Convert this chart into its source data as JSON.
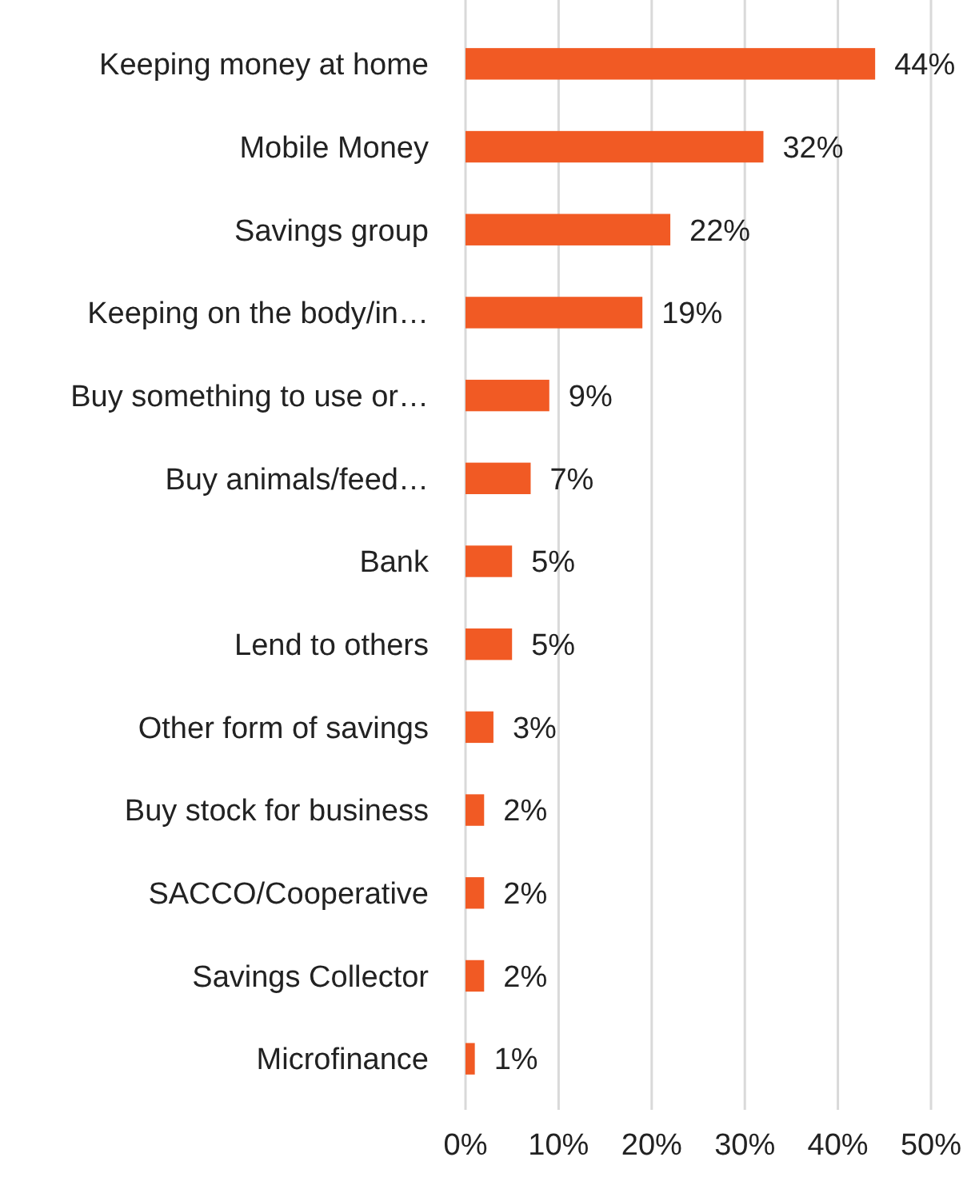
{
  "chart_data": {
    "type": "bar",
    "orientation": "horizontal",
    "categories": [
      "Keeping money at home",
      "Mobile Money",
      "Savings group",
      "Keeping on the body/in…",
      "Buy something to use or…",
      "Buy animals/feed…",
      "Bank",
      "Lend to others",
      "Other form of savings",
      "Buy stock for business",
      "SACCO/Cooperative",
      "Savings Collector",
      "Microfinance"
    ],
    "values": [
      44,
      32,
      22,
      19,
      9,
      7,
      5,
      5,
      3,
      2,
      2,
      2,
      1
    ],
    "value_labels": [
      "44%",
      "32%",
      "22%",
      "19%",
      "9%",
      "7%",
      "5%",
      "5%",
      "3%",
      "2%",
      "2%",
      "2%",
      "1%"
    ],
    "color": "#f15a24",
    "xlim": [
      0,
      50
    ],
    "xticks": [
      {
        "value": 0,
        "label": "0%"
      },
      {
        "value": 10,
        "label": "10%"
      },
      {
        "value": 20,
        "label": "20%"
      },
      {
        "value": 30,
        "label": "30%"
      },
      {
        "value": 40,
        "label": "40%"
      },
      {
        "value": 50,
        "label": "50%"
      }
    ],
    "grid": "x"
  }
}
